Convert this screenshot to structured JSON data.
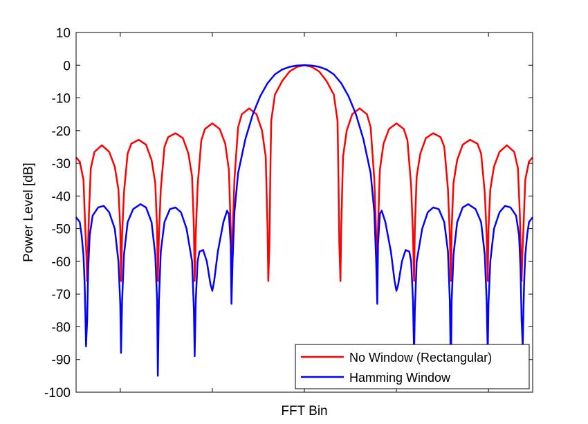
{
  "chart_data": {
    "type": "line",
    "title": "",
    "xlabel": "FFT Bin",
    "ylabel": "Power Level [dB]",
    "ylim": [
      -100,
      10
    ],
    "yticks": [
      10,
      0,
      -10,
      -20,
      -30,
      -40,
      -50,
      -60,
      -70,
      -80,
      -90,
      -100
    ],
    "ytick_labels": [
      "10",
      "0",
      "-10",
      "-20",
      "-30",
      "-40",
      "-50",
      "-60",
      "-70",
      "-80",
      "-90",
      "-100"
    ],
    "xlim": [
      -6.2,
      6.2
    ],
    "xticks": [
      -5,
      -2.5,
      0,
      2.5,
      5
    ],
    "xtick_labels": [],
    "grid": false,
    "legend_position": "bottom-right",
    "series": [
      {
        "name": "No Window (Rectangular)",
        "color": "#ff0000",
        "points": [
          [
            -6.2,
            -28.2
          ],
          [
            -6.1,
            -29.5
          ],
          [
            -6.0,
            -35.0
          ],
          [
            -5.95,
            -50.0
          ],
          [
            -5.92,
            -58.0
          ],
          [
            -5.9,
            -66.0
          ],
          [
            -5.88,
            -58.0
          ],
          [
            -5.85,
            -45.0
          ],
          [
            -5.8,
            -31.5
          ],
          [
            -5.7,
            -26.5
          ],
          [
            -5.5,
            -24.5
          ],
          [
            -5.3,
            -26.5
          ],
          [
            -5.15,
            -31.0
          ],
          [
            -5.05,
            -38.0
          ],
          [
            -5.0,
            -50.0
          ],
          [
            -4.98,
            -66.0
          ],
          [
            -4.95,
            -52.0
          ],
          [
            -4.9,
            -39.0
          ],
          [
            -4.8,
            -27.0
          ],
          [
            -4.7,
            -24.0
          ],
          [
            -4.5,
            -22.8
          ],
          [
            -4.3,
            -24.3
          ],
          [
            -4.15,
            -29.0
          ],
          [
            -4.05,
            -36.0
          ],
          [
            -4.0,
            -50.0
          ],
          [
            -3.98,
            -66.0
          ],
          [
            -3.95,
            -52.0
          ],
          [
            -3.9,
            -38.0
          ],
          [
            -3.8,
            -25.0
          ],
          [
            -3.7,
            -22.0
          ],
          [
            -3.5,
            -20.8
          ],
          [
            -3.3,
            -22.3
          ],
          [
            -3.15,
            -27.0
          ],
          [
            -3.05,
            -34.0
          ],
          [
            -3.0,
            -50.0
          ],
          [
            -2.98,
            -66.0
          ],
          [
            -2.95,
            -52.0
          ],
          [
            -2.9,
            -37.0
          ],
          [
            -2.8,
            -23.0
          ],
          [
            -2.7,
            -19.5
          ],
          [
            -2.5,
            -17.8
          ],
          [
            -2.3,
            -19.5
          ],
          [
            -2.15,
            -24.0
          ],
          [
            -2.05,
            -32.0
          ],
          [
            -2.0,
            -50.0
          ],
          [
            -1.98,
            -66.0
          ],
          [
            -1.95,
            -52.0
          ],
          [
            -1.9,
            -35.0
          ],
          [
            -1.8,
            -19.0
          ],
          [
            -1.7,
            -15.0
          ],
          [
            -1.5,
            -13.2
          ],
          [
            -1.3,
            -15.0
          ],
          [
            -1.15,
            -20.0
          ],
          [
            -1.05,
            -28.0
          ],
          [
            -1.0,
            -50.0
          ],
          [
            -0.98,
            -66.0
          ],
          [
            -0.95,
            -55.0
          ],
          [
            -0.92,
            -30.0
          ],
          [
            -0.9,
            -17.0
          ],
          [
            -0.8,
            -9.0
          ],
          [
            -0.6,
            -4.8
          ],
          [
            -0.4,
            -1.9
          ],
          [
            -0.2,
            -0.5
          ],
          [
            0,
            0
          ],
          [
            0.2,
            -0.5
          ],
          [
            0.4,
            -1.9
          ],
          [
            0.6,
            -4.8
          ],
          [
            0.8,
            -9.0
          ],
          [
            0.9,
            -17.0
          ],
          [
            0.92,
            -30.0
          ],
          [
            0.95,
            -55.0
          ],
          [
            0.98,
            -66.0
          ],
          [
            1.0,
            -50.0
          ],
          [
            1.05,
            -28.0
          ],
          [
            1.15,
            -20.0
          ],
          [
            1.3,
            -15.0
          ],
          [
            1.5,
            -13.2
          ],
          [
            1.7,
            -15.0
          ],
          [
            1.8,
            -19.0
          ],
          [
            1.9,
            -35.0
          ],
          [
            1.95,
            -52.0
          ],
          [
            1.98,
            -66.0
          ],
          [
            2.0,
            -50.0
          ],
          [
            2.05,
            -32.0
          ],
          [
            2.15,
            -24.0
          ],
          [
            2.3,
            -19.5
          ],
          [
            2.5,
            -17.8
          ],
          [
            2.7,
            -19.5
          ],
          [
            2.8,
            -23.0
          ],
          [
            2.9,
            -37.0
          ],
          [
            2.95,
            -52.0
          ],
          [
            2.98,
            -66.0
          ],
          [
            3.0,
            -50.0
          ],
          [
            3.05,
            -34.0
          ],
          [
            3.15,
            -27.0
          ],
          [
            3.3,
            -22.3
          ],
          [
            3.5,
            -20.8
          ],
          [
            3.7,
            -22.0
          ],
          [
            3.8,
            -25.0
          ],
          [
            3.9,
            -38.0
          ],
          [
            3.95,
            -52.0
          ],
          [
            3.98,
            -66.0
          ],
          [
            4.0,
            -50.0
          ],
          [
            4.05,
            -36.0
          ],
          [
            4.15,
            -29.0
          ],
          [
            4.3,
            -24.3
          ],
          [
            4.5,
            -22.8
          ],
          [
            4.7,
            -24.0
          ],
          [
            4.8,
            -27.0
          ],
          [
            4.9,
            -39.0
          ],
          [
            4.95,
            -52.0
          ],
          [
            4.98,
            -66.0
          ],
          [
            5.0,
            -50.0
          ],
          [
            5.05,
            -38.0
          ],
          [
            5.15,
            -31.0
          ],
          [
            5.3,
            -26.5
          ],
          [
            5.5,
            -24.5
          ],
          [
            5.7,
            -26.5
          ],
          [
            5.8,
            -31.5
          ],
          [
            5.85,
            -45.0
          ],
          [
            5.88,
            -58.0
          ],
          [
            5.9,
            -66.0
          ],
          [
            5.92,
            -58.0
          ],
          [
            5.95,
            -50.0
          ],
          [
            6.0,
            -35.0
          ],
          [
            6.1,
            -29.5
          ],
          [
            6.2,
            -28.2
          ]
        ]
      },
      {
        "name": "Hamming Window",
        "color": "#0000ff",
        "points": [
          [
            -6.2,
            -46.5
          ],
          [
            -6.1,
            -48.0
          ],
          [
            -6.05,
            -52.0
          ],
          [
            -6.0,
            -58.0
          ],
          [
            -5.97,
            -66.0
          ],
          [
            -5.95,
            -75.0
          ],
          [
            -5.93,
            -86.0
          ],
          [
            -5.9,
            -78.0
          ],
          [
            -5.87,
            -62.0
          ],
          [
            -5.83,
            -52.0
          ],
          [
            -5.75,
            -46.0
          ],
          [
            -5.6,
            -43.5
          ],
          [
            -5.45,
            -43.0
          ],
          [
            -5.3,
            -45.0
          ],
          [
            -5.15,
            -50.0
          ],
          [
            -5.05,
            -60.0
          ],
          [
            -5.0,
            -73.0
          ],
          [
            -4.98,
            -88.0
          ],
          [
            -4.95,
            -72.0
          ],
          [
            -4.9,
            -58.0
          ],
          [
            -4.8,
            -48.0
          ],
          [
            -4.65,
            -44.0
          ],
          [
            -4.45,
            -42.5
          ],
          [
            -4.3,
            -43.5
          ],
          [
            -4.15,
            -48.0
          ],
          [
            -4.05,
            -58.0
          ],
          [
            -4.0,
            -72.0
          ],
          [
            -3.98,
            -95.0
          ],
          [
            -3.95,
            -72.0
          ],
          [
            -3.9,
            -57.0
          ],
          [
            -3.8,
            -48.0
          ],
          [
            -3.65,
            -44.0
          ],
          [
            -3.5,
            -43.5
          ],
          [
            -3.35,
            -45.0
          ],
          [
            -3.2,
            -50.0
          ],
          [
            -3.05,
            -60.0
          ],
          [
            -3.0,
            -75.0
          ],
          [
            -2.98,
            -89.0
          ],
          [
            -2.95,
            -72.0
          ],
          [
            -2.9,
            -60.0
          ],
          [
            -2.85,
            -57.0
          ],
          [
            -2.75,
            -56.5
          ],
          [
            -2.65,
            -60.0
          ],
          [
            -2.55,
            -67.0
          ],
          [
            -2.5,
            -69.0
          ],
          [
            -2.45,
            -66.0
          ],
          [
            -2.35,
            -57.0
          ],
          [
            -2.2,
            -48.0
          ],
          [
            -2.1,
            -44.5
          ],
          [
            -2.05,
            -45.5
          ],
          [
            -2.0,
            -55.0
          ],
          [
            -1.98,
            -73.0
          ],
          [
            -1.95,
            -60.0
          ],
          [
            -1.9,
            -45.0
          ],
          [
            -1.8,
            -33.0
          ],
          [
            -1.6,
            -22.5
          ],
          [
            -1.4,
            -15.0
          ],
          [
            -1.2,
            -9.5
          ],
          [
            -1.0,
            -5.5
          ],
          [
            -0.8,
            -2.8
          ],
          [
            -0.6,
            -1.3
          ],
          [
            -0.4,
            -0.5
          ],
          [
            -0.2,
            -0.1
          ],
          [
            0,
            0
          ],
          [
            0.2,
            -0.1
          ],
          [
            0.4,
            -0.5
          ],
          [
            0.6,
            -1.3
          ],
          [
            0.8,
            -2.8
          ],
          [
            1.0,
            -5.5
          ],
          [
            1.2,
            -9.5
          ],
          [
            1.4,
            -15.0
          ],
          [
            1.6,
            -22.5
          ],
          [
            1.8,
            -33.0
          ],
          [
            1.9,
            -45.0
          ],
          [
            1.95,
            -60.0
          ],
          [
            1.98,
            -73.0
          ],
          [
            2.0,
            -55.0
          ],
          [
            2.05,
            -45.5
          ],
          [
            2.1,
            -44.5
          ],
          [
            2.2,
            -48.0
          ],
          [
            2.35,
            -57.0
          ],
          [
            2.45,
            -66.0
          ],
          [
            2.5,
            -69.0
          ],
          [
            2.55,
            -67.0
          ],
          [
            2.65,
            -60.0
          ],
          [
            2.75,
            -56.5
          ],
          [
            2.85,
            -57.0
          ],
          [
            2.9,
            -60.0
          ],
          [
            2.95,
            -72.0
          ],
          [
            2.98,
            -89.0
          ],
          [
            3.0,
            -75.0
          ],
          [
            3.05,
            -60.0
          ],
          [
            3.2,
            -50.0
          ],
          [
            3.35,
            -45.0
          ],
          [
            3.5,
            -43.5
          ],
          [
            3.65,
            -44.0
          ],
          [
            3.8,
            -48.0
          ],
          [
            3.9,
            -57.0
          ],
          [
            3.95,
            -72.0
          ],
          [
            3.98,
            -95.0
          ],
          [
            4.0,
            -72.0
          ],
          [
            4.05,
            -58.0
          ],
          [
            4.15,
            -48.0
          ],
          [
            4.3,
            -43.5
          ],
          [
            4.45,
            -42.5
          ],
          [
            4.65,
            -44.0
          ],
          [
            4.8,
            -48.0
          ],
          [
            4.9,
            -58.0
          ],
          [
            4.95,
            -72.0
          ],
          [
            4.98,
            -88.0
          ],
          [
            5.0,
            -73.0
          ],
          [
            5.05,
            -60.0
          ],
          [
            5.15,
            -50.0
          ],
          [
            5.3,
            -45.0
          ],
          [
            5.45,
            -43.0
          ],
          [
            5.6,
            -43.5
          ],
          [
            5.75,
            -46.0
          ],
          [
            5.83,
            -52.0
          ],
          [
            5.87,
            -62.0
          ],
          [
            5.9,
            -78.0
          ],
          [
            5.93,
            -86.0
          ],
          [
            5.95,
            -75.0
          ],
          [
            5.97,
            -66.0
          ],
          [
            6.0,
            -58.0
          ],
          [
            6.05,
            -52.0
          ],
          [
            6.1,
            -48.0
          ],
          [
            6.2,
            -46.5
          ]
        ]
      }
    ]
  }
}
